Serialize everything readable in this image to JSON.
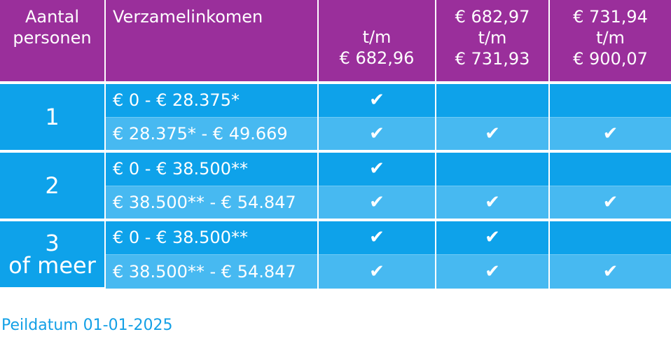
{
  "header": {
    "persons": [
      "Aantal",
      "personen"
    ],
    "income": "Verzamelinkomen",
    "columns": [
      [
        "t/m",
        "€ 682,96"
      ],
      [
        "€ 682,97",
        "t/m",
        "€ 731,93"
      ],
      [
        "€ 731,94",
        "t/m",
        "€ 900,07"
      ]
    ]
  },
  "groups": [
    {
      "persons": [
        "1"
      ],
      "rows": [
        {
          "income": "€ 0 - € 28.375*",
          "checks": [
            "✔",
            "",
            ""
          ]
        },
        {
          "income": "€ 28.375* - € 49.669",
          "checks": [
            "✔",
            "✔",
            "✔"
          ]
        }
      ]
    },
    {
      "persons": [
        "2"
      ],
      "rows": [
        {
          "income": "€ 0 - € 38.500**",
          "checks": [
            "✔",
            "",
            ""
          ]
        },
        {
          "income": "€ 38.500** - € 54.847",
          "checks": [
            "✔",
            "✔",
            "✔"
          ]
        }
      ]
    },
    {
      "persons": [
        "3",
        "of meer"
      ],
      "rows": [
        {
          "income": "€ 0 - € 38.500**",
          "checks": [
            "✔",
            "✔",
            ""
          ]
        },
        {
          "income": "€ 38.500** - € 54.847",
          "checks": [
            "✔",
            "✔",
            "✔"
          ]
        }
      ]
    }
  ],
  "footnote": "Peildatum 01-01-2025",
  "colors": {
    "header_bg": "#9a2f9b",
    "row_dark": "#0ea2ea",
    "row_light": "#47b9f1",
    "footnote": "#13a0e6"
  }
}
